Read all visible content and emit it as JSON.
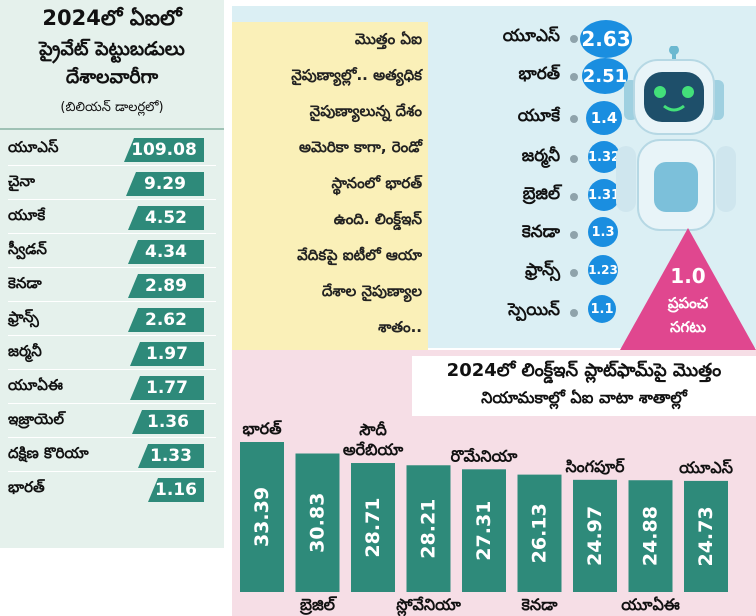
{
  "left_panel": {
    "title_line1": "2024లో ఏఐలో",
    "title_line2": "ప్రైవేట్ పెట్టుబడులు",
    "title_line3": "దేశాలవారీగా",
    "unit": "(బిలియన్ డాలర్లలో)",
    "rows": [
      {
        "country": "యూఎస్",
        "value": "109.08"
      },
      {
        "country": "చైనా",
        "value": "9.29"
      },
      {
        "country": "యూకే",
        "value": "4.52"
      },
      {
        "country": "స్వీడన్",
        "value": "4.34"
      },
      {
        "country": "కెనడా",
        "value": "2.89"
      },
      {
        "country": "ఫ్రాన్స్",
        "value": "2.62"
      },
      {
        "country": "జర్మనీ",
        "value": "1.97"
      },
      {
        "country": "యూఏఈ",
        "value": "1.77"
      },
      {
        "country": "ఇజ్రాయెల్",
        "value": "1.36"
      },
      {
        "country": "దక్షిణ కొరియా",
        "value": "1.33"
      },
      {
        "country": "భారత్",
        "value": "1.16"
      }
    ]
  },
  "skills_panel": {
    "blurb_lines": [
      "మొత్తం ఏఐ",
      "నైపుణ్యాల్లో.. అత్యధిక",
      "నైపుణ్యాలున్న దేశం",
      "అమెరికా కాగా, రెండో",
      "స్థానంలో భారత్",
      "ఉంది. లింక్డ్ఇన్",
      "వేదికపై ఐటీలో ఆయా",
      "దేశాల నైపుణ్యాల",
      "శాతం.."
    ],
    "rows": [
      {
        "country": "యూఎస్",
        "value": "2.63"
      },
      {
        "country": "భారత్",
        "value": "2.51"
      },
      {
        "country": "యూకే",
        "value": "1.4"
      },
      {
        "country": "జర్మనీ",
        "value": "1.32"
      },
      {
        "country": "బ్రెజిల్",
        "value": "1.31"
      },
      {
        "country": "కెనడా",
        "value": "1.3"
      },
      {
        "country": "ఫ్రాన్స్",
        "value": "1.23"
      },
      {
        "country": "స్పెయిన్",
        "value": "1.1"
      }
    ],
    "world_avg_value": "1.0",
    "world_avg_line1": "ప్రపంచ",
    "world_avg_line2": "సగటు"
  },
  "chart_data": {
    "type": "bar",
    "title": "2024లో లింక్డ్ఇన్ ప్లాట్‌ఫామ్‌పై మొత్తం నియామకాల్లో ఏఐ వాటా శాతాల్లో",
    "title_line1": "2024లో లింక్డ్ఇన్ ప్లాట్‌ఫామ్‌పై మొత్తం",
    "title_line2": "నియామకాల్లో ఏఐ వాటా శాతాల్లో",
    "categories": [
      "భారత్",
      "బ్రెజిల్",
      "సౌదీ అరేబియా",
      "స్లోవేనియా",
      "రొమేనియా",
      "కెనడా",
      "సింగపూర్",
      "యూఏఈ",
      "యూఎస్"
    ],
    "label_position": [
      "top",
      "bottom",
      "top",
      "bottom",
      "top",
      "bottom",
      "top",
      "bottom",
      "top"
    ],
    "values": [
      33.39,
      30.83,
      28.71,
      28.21,
      27.31,
      26.13,
      24.97,
      24.88,
      24.73
    ],
    "value_labels": [
      "33.39",
      "30.83",
      "28.71",
      "28.21",
      "27.31",
      "26.13",
      "24.97",
      "24.88",
      "24.73"
    ],
    "xlabel": "",
    "ylabel": "",
    "grid": false,
    "legend": "none"
  },
  "colors": {
    "left_bg": "#e5f1ec",
    "teal": "#2e8a7a",
    "blue": "#1a8ee0",
    "pink": "#e0478f",
    "blurb_bg": "#faf0b8",
    "bottom_bg": "#f6dee6"
  },
  "icons": [
    "robot-illustration",
    "world-average-triangle"
  ]
}
